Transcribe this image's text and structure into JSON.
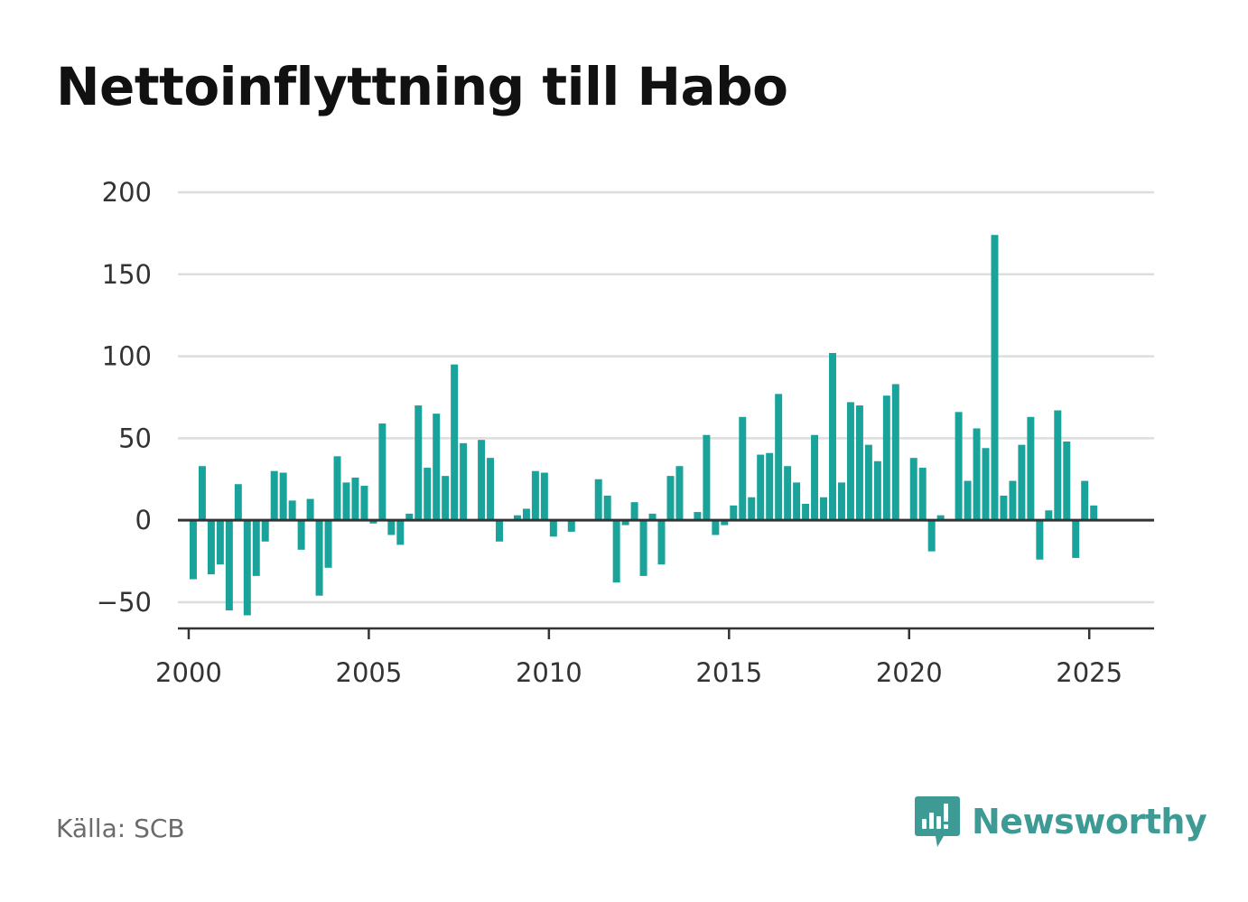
{
  "header": {
    "title": "Nettoinflyttning till Habo"
  },
  "footer": {
    "source": "Källa: SCB",
    "brand": "Newsworthy"
  },
  "colors": {
    "bar": "#1aa39a",
    "grid": "#dddddd",
    "axis": "#333333",
    "brand": "#3e9a94"
  },
  "icons": {
    "brand_logo": "bar-chart-speech-bubble-icon"
  },
  "chart_data": {
    "type": "bar",
    "title": "Nettoinflyttning till Habo",
    "xlabel": "",
    "ylabel": "",
    "xlim": [
      1999.7,
      2026.8
    ],
    "ylim": [
      -66,
      200
    ],
    "yticks": [
      -50,
      0,
      50,
      100,
      150,
      200
    ],
    "ytick_labels": [
      "−50",
      "0",
      "50",
      "100",
      "150",
      "200"
    ],
    "xticks": [
      2000,
      2005,
      2010,
      2015,
      2020,
      2025
    ],
    "xtick_labels": [
      "2000",
      "2005",
      "2010",
      "2015",
      "2020",
      "2025"
    ],
    "grid": true,
    "periods": [
      "2000 K1",
      "2000 K2",
      "2000 K3",
      "2000 K4",
      "2001 K1",
      "2001 K2",
      "2001 K3",
      "2001 K4",
      "2002 K1",
      "2002 K2",
      "2002 K3",
      "2002 K4",
      "2003 K1",
      "2003 K2",
      "2003 K3",
      "2003 K4",
      "2004 K1",
      "2004 K2",
      "2004 K3",
      "2004 K4",
      "2005 K1",
      "2005 K2",
      "2005 K3",
      "2005 K4",
      "2006 K1",
      "2006 K2",
      "2006 K3",
      "2006 K4",
      "2007 K1",
      "2007 K2",
      "2007 K3",
      "2007 K4",
      "2008 K1",
      "2008 K2",
      "2008 K3",
      "2008 K4",
      "2009 K1",
      "2009 K2",
      "2009 K3",
      "2009 K4",
      "2010 K1",
      "2010 K2",
      "2010 K3",
      "2010 K4",
      "2011 K1",
      "2011 K2",
      "2011 K3",
      "2011 K4",
      "2012 K1",
      "2012 K2",
      "2012 K3",
      "2012 K4",
      "2013 K1",
      "2013 K2",
      "2013 K3",
      "2013 K4",
      "2014 K1",
      "2014 K2",
      "2014 K3",
      "2014 K4",
      "2015 K1",
      "2015 K2",
      "2015 K3",
      "2015 K4",
      "2016 K1",
      "2016 K2",
      "2016 K3",
      "2016 K4",
      "2017 K1",
      "2017 K2",
      "2017 K3",
      "2017 K4",
      "2018 K1",
      "2018 K2",
      "2018 K3",
      "2018 K4",
      "2019 K1",
      "2019 K2",
      "2019 K3",
      "2019 K4",
      "2020 K1",
      "2020 K2",
      "2020 K3",
      "2020 K4",
      "2021 K1",
      "2021 K2",
      "2021 K3",
      "2021 K4",
      "2022 K1",
      "2022 K2",
      "2022 K3",
      "2022 K4",
      "2023 K1",
      "2023 K2",
      "2023 K3",
      "2023 K4",
      "2024 K1",
      "2024 K2",
      "2024 K3",
      "2024 K4",
      "2025 K1",
      "2025 K2"
    ],
    "x": [
      2000.125,
      2000.375,
      2000.625,
      2000.875,
      2001.125,
      2001.375,
      2001.625,
      2001.875,
      2002.125,
      2002.375,
      2002.625,
      2002.875,
      2003.125,
      2003.375,
      2003.625,
      2003.875,
      2004.125,
      2004.375,
      2004.625,
      2004.875,
      2005.125,
      2005.375,
      2005.625,
      2005.875,
      2006.125,
      2006.375,
      2006.625,
      2006.875,
      2007.125,
      2007.375,
      2007.625,
      2007.875,
      2008.125,
      2008.375,
      2008.625,
      2008.875,
      2009.125,
      2009.375,
      2009.625,
      2009.875,
      2010.125,
      2010.375,
      2010.625,
      2010.875,
      2011.125,
      2011.375,
      2011.625,
      2011.875,
      2012.125,
      2012.375,
      2012.625,
      2012.875,
      2013.125,
      2013.375,
      2013.625,
      2013.875,
      2014.125,
      2014.375,
      2014.625,
      2014.875,
      2015.125,
      2015.375,
      2015.625,
      2015.875,
      2016.125,
      2016.375,
      2016.625,
      2016.875,
      2017.125,
      2017.375,
      2017.625,
      2017.875,
      2018.125,
      2018.375,
      2018.625,
      2018.875,
      2019.125,
      2019.375,
      2019.625,
      2019.875,
      2020.125,
      2020.375,
      2020.625,
      2020.875,
      2021.125,
      2021.375,
      2021.625,
      2021.875,
      2022.125,
      2022.375,
      2022.625,
      2022.875,
      2023.125,
      2023.375,
      2023.625,
      2023.875,
      2024.125,
      2024.375,
      2024.625,
      2024.875,
      2025.125,
      2025.375
    ],
    "values": [
      -36,
      33,
      -33,
      -27,
      -55,
      22,
      -58,
      -34,
      -13,
      30,
      29,
      12,
      -18,
      13,
      -46,
      -29,
      39,
      23,
      26,
      21,
      -2,
      59,
      -9,
      -15,
      4,
      70,
      32,
      65,
      27,
      95,
      47,
      0,
      49,
      38,
      -13,
      0,
      3,
      7,
      30,
      29,
      -10,
      0,
      -7,
      0,
      0,
      25,
      15,
      -38,
      -3,
      11,
      -34,
      4,
      -27,
      27,
      33,
      0,
      5,
      52,
      -9,
      -3,
      9,
      63,
      14,
      40,
      41,
      77,
      33,
      23,
      10,
      52,
      14,
      102,
      23,
      72,
      70,
      46,
      36,
      76,
      83,
      0,
      38,
      32,
      -19,
      3,
      0,
      66,
      24,
      56,
      44,
      174,
      15,
      24,
      46,
      63,
      -24,
      6,
      67,
      48,
      -23,
      24,
      9,
      0
    ]
  }
}
